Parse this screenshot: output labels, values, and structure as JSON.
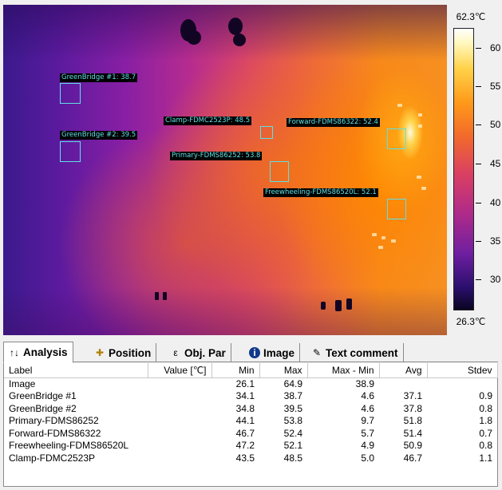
{
  "thermal": {
    "scale_max": "62.3℃",
    "scale_min": "26.3℃",
    "scale_ticks": [
      "60",
      "55",
      "50",
      "45",
      "40",
      "35",
      "30"
    ],
    "rois": [
      {
        "label": "GreenBridge #1: 38.7"
      },
      {
        "label": "GreenBridge #2: 39.5"
      },
      {
        "label": "Clamp-FDMC2523P: 48.5"
      },
      {
        "label": "Primary-FDMS86252: 53.8"
      },
      {
        "label": "Forward-FDMS86322: 52.4"
      },
      {
        "label": "Freewheeling-FDMS86520L: 52.1"
      }
    ]
  },
  "tabs": [
    {
      "label": "Analysis",
      "icon": "analysis-icon"
    },
    {
      "label": "Position",
      "icon": "position-icon"
    },
    {
      "label": "Obj. Par",
      "icon": "object-parameter-icon"
    },
    {
      "label": "Image",
      "icon": "info-icon"
    },
    {
      "label": "Text comment",
      "icon": "comment-icon"
    }
  ],
  "table": {
    "headers": [
      "Label",
      "Value [℃]",
      "Min",
      "Max",
      "Max - Min",
      "Avg",
      "Stdev"
    ],
    "rows": [
      [
        "Image",
        "",
        "26.1",
        "64.9",
        "38.9",
        "",
        ""
      ],
      [
        "GreenBridge #1",
        "",
        "34.1",
        "38.7",
        "4.6",
        "37.1",
        "0.9"
      ],
      [
        "GreenBridge #2",
        "",
        "34.8",
        "39.5",
        "4.6",
        "37.8",
        "0.8"
      ],
      [
        "Primary-FDMS86252",
        "",
        "44.1",
        "53.8",
        "9.7",
        "51.8",
        "1.8"
      ],
      [
        "Forward-FDMS86322",
        "",
        "46.7",
        "52.4",
        "5.7",
        "51.4",
        "0.7"
      ],
      [
        "Freewheeling-FDMS86520L",
        "",
        "47.2",
        "52.1",
        "4.9",
        "50.9",
        "0.8"
      ],
      [
        "Clamp-FDMC2523P",
        "",
        "43.5",
        "48.5",
        "5.0",
        "46.7",
        "1.1"
      ]
    ]
  }
}
